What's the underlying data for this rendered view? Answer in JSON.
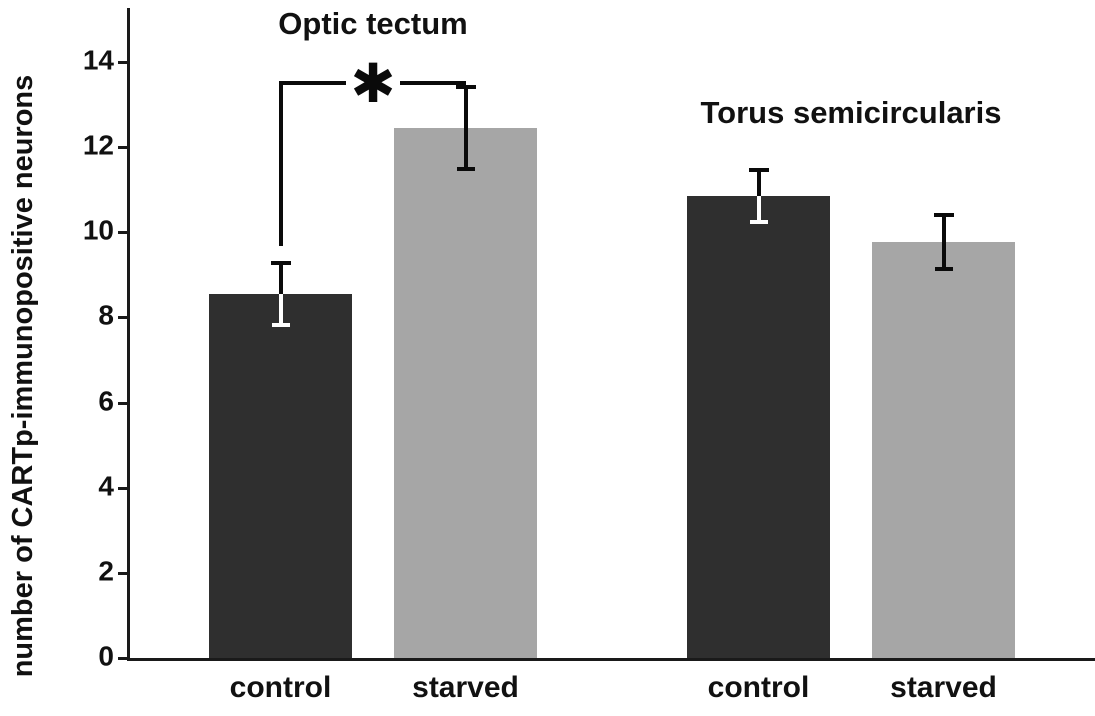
{
  "chart_data": {
    "type": "bar",
    "ylabel": "number of CARTp-immunopositive neurons",
    "xlabel": "",
    "ylim": [
      0,
      15
    ],
    "yticks": [
      0,
      2,
      4,
      6,
      8,
      10,
      12,
      14
    ],
    "grid": false,
    "legend": "none",
    "bar_colors": {
      "control": "#2f2f2f",
      "starved": "#a6a6a6"
    },
    "groups": [
      {
        "title": "Optic tectum",
        "categories": [
          "control",
          "starved"
        ],
        "bars": [
          {
            "label": "control",
            "value": 8.55,
            "error": 0.78,
            "shade": "dark"
          },
          {
            "label": "starved",
            "value": 12.45,
            "error": 1.0,
            "shade": "light"
          }
        ],
        "significance": {
          "marker": "✱",
          "between": [
            "control",
            "starved"
          ],
          "bracket_value": 13.5
        }
      },
      {
        "title": "Torus semicircularis",
        "categories": [
          "control",
          "starved"
        ],
        "bars": [
          {
            "label": "control",
            "value": 10.85,
            "error": 0.65,
            "shade": "dark"
          },
          {
            "label": "starved",
            "value": 9.78,
            "error": 0.68,
            "shade": "light"
          }
        ]
      }
    ]
  }
}
